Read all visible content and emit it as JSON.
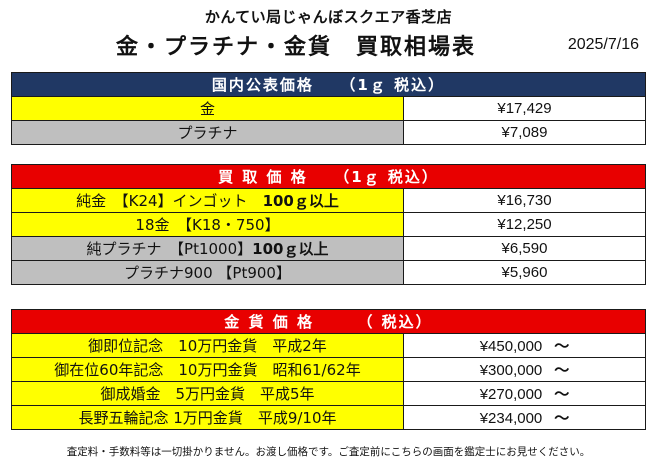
{
  "header": {
    "store": "かんてい局じゃんぼスクエア香芝店",
    "title": "金・プラチナ・金貨　買取相場表",
    "date": "2025/7/16"
  },
  "colors": {
    "header_blue": "#203864",
    "header_red": "#e80000",
    "gold_row": "#ffff00",
    "platinum_row": "#bfbfbf"
  },
  "domestic": {
    "heading": "国内公表価格　　（1ｇ 税込）",
    "rows": [
      {
        "name": "金",
        "price": "¥17,429"
      },
      {
        "name": "プラチナ",
        "price": "¥7,089"
      }
    ]
  },
  "buy": {
    "heading": "買 取 価 格　　（1ｇ 税込）",
    "rows": [
      {
        "name_main": "純金　【K24】インゴット　",
        "name_strong": "100ｇ以上",
        "price": "¥16,730"
      },
      {
        "name": "18金　【K18・750】",
        "price": "¥12,250"
      },
      {
        "name_main": "純プラチナ　【Pt1000】",
        "name_strong": "100ｇ以上",
        "price": "¥6,590"
      },
      {
        "name": "プラチナ900 【Pt900】",
        "price": "¥5,960"
      }
    ]
  },
  "coins": {
    "heading": "金 貨 価 格　　　（ 税込）",
    "suffix": "～",
    "rows": [
      {
        "name": "御即位記念　10万円金貨　平成2年",
        "price": "¥450,000"
      },
      {
        "name": "御在位60年記念　10万円金貨　昭和61/62年",
        "price": "¥300,000"
      },
      {
        "name": "御成婚金　5万円金貨　平成5年",
        "price": "¥270,000"
      },
      {
        "name": "長野五輪記念 1万円金貨　平成9/10年",
        "price": "¥234,000"
      }
    ]
  },
  "footer": {
    "note": "査定料・手数料等は一切掛かりません。お渡し価格です。ご査定前にこちらの画面を鑑定士にお見せください。"
  }
}
